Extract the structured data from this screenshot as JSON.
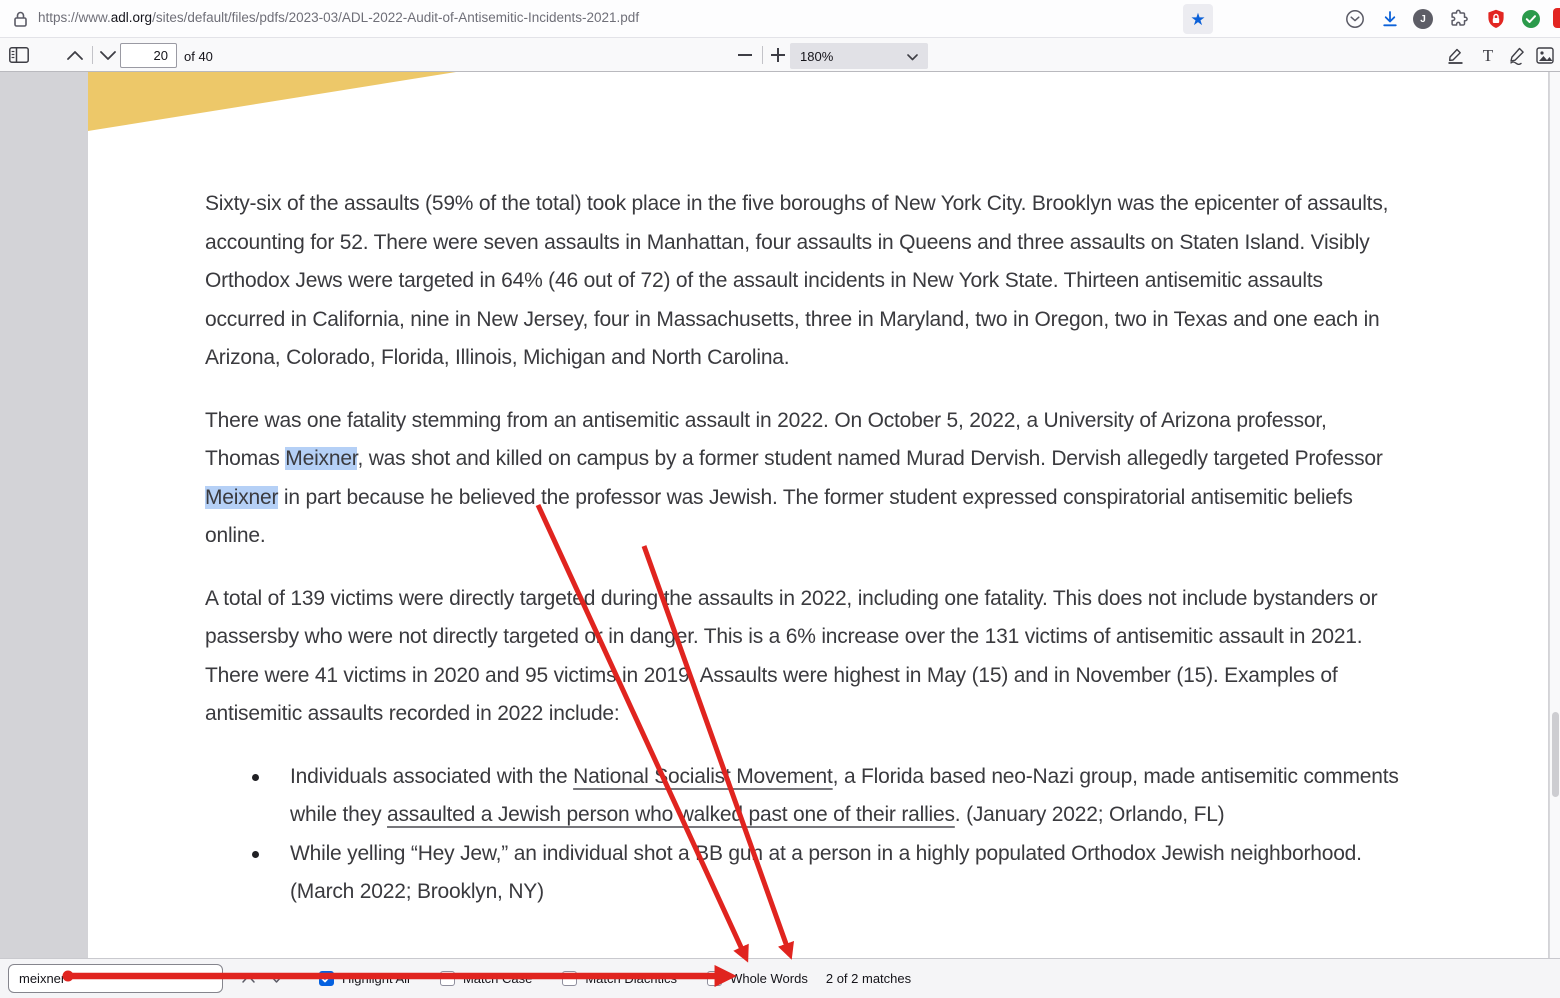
{
  "browser": {
    "url_prefix": "https://www.",
    "url_domain": "adl.org",
    "url_path": "/sites/default/files/pdfs/2023-03/ADL-2022-Audit-of-Antisemitic-Incidents-2021.pdf",
    "profile_initial": "J",
    "star_glyph": "★"
  },
  "pdf_toolbar": {
    "page_value": "20",
    "page_total_label": "of 40",
    "zoom_value": "180%"
  },
  "document": {
    "paragraphs": [
      {
        "parts": [
          {
            "text": "Sixty-six of the assaults (59% of the total) took place in the five boroughs of New York City. Brooklyn was the epicenter of assaults, accounting for 52. There were seven assaults in Manhattan, four assaults in Queens and three assaults on Staten Island. Visibly Orthodox Jews were targeted in 64% (46 out of 72) of the assault incidents in New York State. Thirteen antisemitic assaults occurred in California, nine in New Jersey, four in Massachusetts, three in Maryland, two in Oregon, two in Texas and one each in Arizona, Colorado, Florida, Illinois, Michigan and North Carolina."
          }
        ]
      },
      {
        "parts": [
          {
            "text": "There was one fatality stemming from an antisemitic assault in 2022. On October 5, 2022, a University of Arizona professor, Thomas "
          },
          {
            "text": "Meixner",
            "style": "match"
          },
          {
            "text": ", was shot and killed on campus by a former student named Murad Dervish. Dervish allegedly targeted Professor "
          },
          {
            "text": "Meixner",
            "style": "match"
          },
          {
            "text": " in part because he believed the professor was Jewish. The former student expressed conspiratorial antisemitic beliefs online."
          }
        ]
      },
      {
        "parts": [
          {
            "text": "A total of 139 victims were directly targeted during the assaults in 2022, including one fatality. This does not include bystanders or passersby who were not directly targeted or in danger. This is a 6% increase over the 131 victims of antisemitic assault in 2021. There were 41 victims in 2020 and 95 victims in 2019. Assaults were highest in May (15) and in November (15). Examples of antisemitic assaults recorded in 2022 include:"
          }
        ]
      }
    ],
    "bullets": [
      {
        "parts": [
          {
            "text": "Individuals associated with the "
          },
          {
            "text": "National Socialist Movement",
            "style": "link"
          },
          {
            "text": ", a Florida based neo-Nazi group, made antisemitic comments while they "
          },
          {
            "text": "assaulted a Jewish person who walked past one of their rallies",
            "style": "link"
          },
          {
            "text": ". (January 2022; Orlando, FL)"
          }
        ]
      },
      {
        "parts": [
          {
            "text": "While yelling “Hey Jew,” an individual shot a BB gun at a person in a highly populated Orthodox Jewish neighborhood. (March 2022; Brooklyn, NY)"
          }
        ]
      }
    ]
  },
  "findbar": {
    "query": "meixner",
    "options": [
      {
        "label": "Highlight All",
        "checked": true
      },
      {
        "label": "Match Case",
        "checked": false
      },
      {
        "label": "Match Diacritics",
        "checked": false
      },
      {
        "label": "Whole Words",
        "checked": false
      }
    ],
    "matches_label": "2 of 2 matches"
  },
  "colors": {
    "accent_blue": "#0561e0",
    "match_highlight": "#b5d0f6",
    "annotation_red": "#e0241f",
    "page_wedge_yellow": "#edc869",
    "shield_red": "#e22622",
    "check_green": "#2b9a4b",
    "star_blue": "#0b60d8"
  },
  "icons": {
    "urlbar": [
      "lock-icon",
      "bookmark-star-icon",
      "pocket-icon",
      "download-icon",
      "account-icon",
      "extensions-puzzle-icon",
      "adblock-shield-icon",
      "status-check-icon"
    ],
    "pdf_toolbar": [
      "sidebar-toggle-icon",
      "page-up-icon",
      "page-down-icon",
      "zoom-out-icon",
      "zoom-in-icon",
      "highlight-tool-icon",
      "text-tool-icon",
      "draw-tool-icon",
      "image-tool-icon"
    ]
  }
}
